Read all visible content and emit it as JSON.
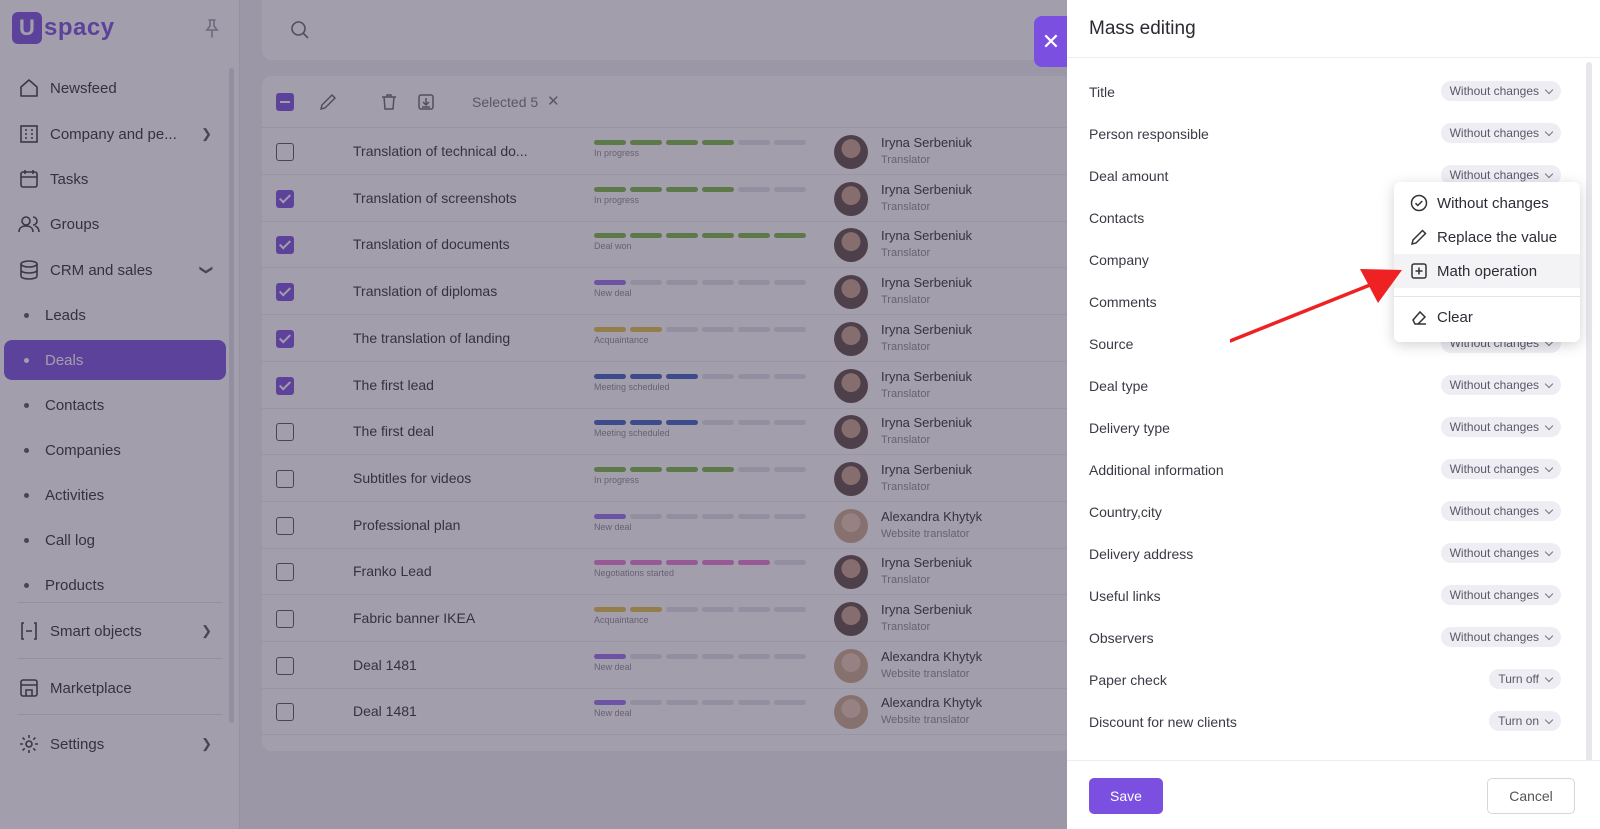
{
  "app": {
    "logo_letter": "U",
    "logo_text": "spacy"
  },
  "colors": {
    "accent": "#7b4fe0",
    "stage_green": "#7db843",
    "stage_purple": "#9a6ff0",
    "stage_yellow": "#e3c247",
    "stage_blue": "#3f5fc4",
    "stage_pink": "#e87bd6",
    "annotation_arrow": "#ee2222"
  },
  "sidebar": {
    "items": [
      {
        "label": "Newsfeed",
        "icon": "home-icon"
      },
      {
        "label": "Company and pe...",
        "icon": "building-icon"
      },
      {
        "label": "Tasks",
        "icon": "calendar-icon"
      },
      {
        "label": "Groups",
        "icon": "users-icon"
      },
      {
        "label": "CRM and sales",
        "icon": "database-icon"
      }
    ],
    "sub_items": [
      {
        "label": "Leads"
      },
      {
        "label": "Deals"
      },
      {
        "label": "Contacts"
      },
      {
        "label": "Companies"
      },
      {
        "label": "Activities"
      },
      {
        "label": "Call log"
      },
      {
        "label": "Products"
      }
    ],
    "bottom_items": [
      {
        "label": "Smart objects",
        "icon": "smart-objects-icon"
      },
      {
        "label": "Marketplace",
        "icon": "store-icon"
      },
      {
        "label": "Settings",
        "icon": "gear-icon"
      }
    ],
    "active_sub_item": "Deals"
  },
  "table": {
    "selected_text": "Selected 5",
    "rows": [
      {
        "name": "Translation of technical do...",
        "checked": false,
        "stage": "In progress",
        "color": "#7db843",
        "filled": 4,
        "person": "Iryna Serbeniuk",
        "role": "Translator",
        "female_avatar": false
      },
      {
        "name": "Translation of screenshots",
        "checked": true,
        "stage": "In progress",
        "color": "#7db843",
        "filled": 4,
        "person": "Iryna Serbeniuk",
        "role": "Translator",
        "female_avatar": false
      },
      {
        "name": "Translation of documents",
        "checked": true,
        "stage": "Deal won",
        "color": "#7db843",
        "filled": 6,
        "person": "Iryna Serbeniuk",
        "role": "Translator",
        "female_avatar": false
      },
      {
        "name": "Translation of diplomas",
        "checked": true,
        "stage": "New deal",
        "color": "#9a6ff0",
        "filled": 1,
        "person": "Iryna Serbeniuk",
        "role": "Translator",
        "female_avatar": false
      },
      {
        "name": "The translation of landing",
        "checked": true,
        "stage": "Acquaintance",
        "color": "#e3c247",
        "filled": 2,
        "person": "Iryna Serbeniuk",
        "role": "Translator",
        "female_avatar": false
      },
      {
        "name": "The first lead",
        "checked": true,
        "stage": "Meeting scheduled",
        "color": "#3f5fc4",
        "filled": 3,
        "person": "Iryna Serbeniuk",
        "role": "Translator",
        "female_avatar": false
      },
      {
        "name": "The first deal",
        "checked": false,
        "stage": "Meeting scheduled",
        "color": "#3f5fc4",
        "filled": 3,
        "person": "Iryna Serbeniuk",
        "role": "Translator",
        "female_avatar": false
      },
      {
        "name": "Subtitles for videos",
        "checked": false,
        "stage": "In progress",
        "color": "#7db843",
        "filled": 4,
        "person": "Iryna Serbeniuk",
        "role": "Translator",
        "female_avatar": false
      },
      {
        "name": "Professional plan",
        "checked": false,
        "stage": "New deal",
        "color": "#9a6ff0",
        "filled": 1,
        "person": "Alexandra Khytyk",
        "role": "Website translator",
        "female_avatar": true
      },
      {
        "name": "Franko Lead",
        "checked": false,
        "stage": "Negotiations started",
        "color": "#e87bd6",
        "filled": 5,
        "person": "Iryna Serbeniuk",
        "role": "Translator",
        "female_avatar": false
      },
      {
        "name": "Fabric banner IKEA",
        "checked": false,
        "stage": "Acquaintance",
        "color": "#e3c247",
        "filled": 2,
        "person": "Iryna Serbeniuk",
        "role": "Translator",
        "female_avatar": false
      },
      {
        "name": "Deal 1481",
        "checked": false,
        "stage": "New deal",
        "color": "#9a6ff0",
        "filled": 1,
        "person": "Alexandra Khytyk",
        "role": "Website translator",
        "female_avatar": true
      },
      {
        "name": "Deal 1481",
        "checked": false,
        "stage": "New deal",
        "color": "#9a6ff0",
        "filled": 1,
        "person": "Alexandra Khytyk",
        "role": "Website translator",
        "female_avatar": true
      }
    ]
  },
  "panel": {
    "title": "Mass editing",
    "fields": [
      {
        "label": "Title",
        "value": "Without changes"
      },
      {
        "label": "Person responsible",
        "value": "Without changes"
      },
      {
        "label": "Deal amount",
        "value": "Without changes"
      },
      {
        "label": "Contacts",
        "value": ""
      },
      {
        "label": "Company",
        "value": ""
      },
      {
        "label": "Comments",
        "value": ""
      },
      {
        "label": "Source",
        "value": "Without changes"
      },
      {
        "label": "Deal type",
        "value": "Without changes"
      },
      {
        "label": "Delivery type",
        "value": "Without changes"
      },
      {
        "label": "Additional information",
        "value": "Without changes"
      },
      {
        "label": "Country,city",
        "value": "Without changes"
      },
      {
        "label": "Delivery address",
        "value": "Without changes"
      },
      {
        "label": "Useful links",
        "value": "Without changes"
      },
      {
        "label": "Observers",
        "value": "Without changes"
      },
      {
        "label": "Paper check",
        "value": "Turn off"
      },
      {
        "label": "Discount for new clients",
        "value": "Turn on"
      }
    ],
    "save_label": "Save",
    "cancel_label": "Cancel"
  },
  "dropdown": {
    "items": [
      {
        "label": "Without changes",
        "icon": "check-circle-icon"
      },
      {
        "label": "Replace the value",
        "icon": "pencil-icon"
      },
      {
        "label": "Math operation",
        "icon": "plus-square-icon"
      },
      {
        "label": "Clear",
        "icon": "eraser-icon"
      }
    ],
    "hovered": "Math operation"
  }
}
